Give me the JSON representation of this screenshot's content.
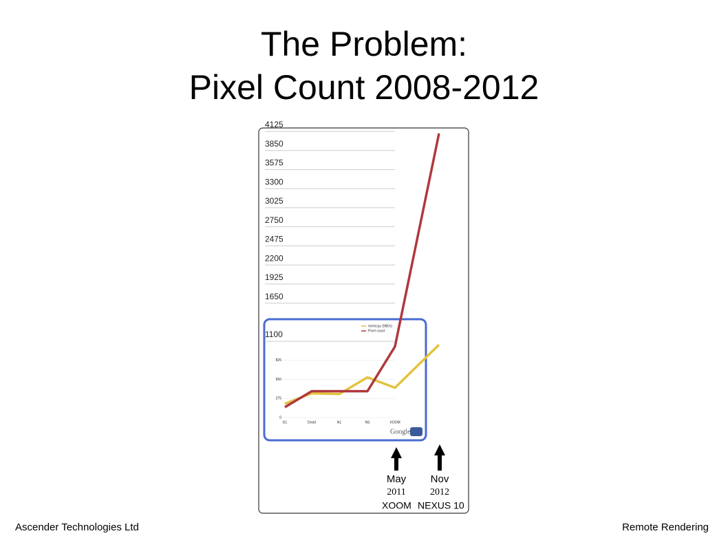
{
  "title_lines": [
    "The Problem:",
    "Pixel Count 2008-2012"
  ],
  "footer": {
    "left": "Ascender Technologies Ltd",
    "right": "Remote Rendering"
  },
  "chart_data": {
    "type": "line",
    "categories": [
      "G1",
      "Droid",
      "N1",
      "NS",
      "XOOM",
      null
    ],
    "series": [
      {
        "name": "memcpy (MB/s)",
        "color": "#e3c33c",
        "values": [
          200,
          350,
          340,
          580,
          430,
          1050
        ]
      },
      {
        "name": "Pixel count",
        "color": "#b0383e",
        "values": [
          150,
          380,
          380,
          380,
          1024,
          4096
        ]
      }
    ],
    "ylim": [
      0,
      4125
    ],
    "yticks": [
      0,
      275,
      550,
      825,
      1100,
      1650,
      1925,
      2200,
      2475,
      2750,
      3025,
      3300,
      3575,
      3850,
      4125
    ],
    "grid": true,
    "logo": "Google",
    "annotations": [
      {
        "month": "May",
        "year": "2011",
        "device": "XOOM"
      },
      {
        "month": "Nov",
        "year": "2012",
        "device": "NEXUS 10"
      }
    ]
  }
}
